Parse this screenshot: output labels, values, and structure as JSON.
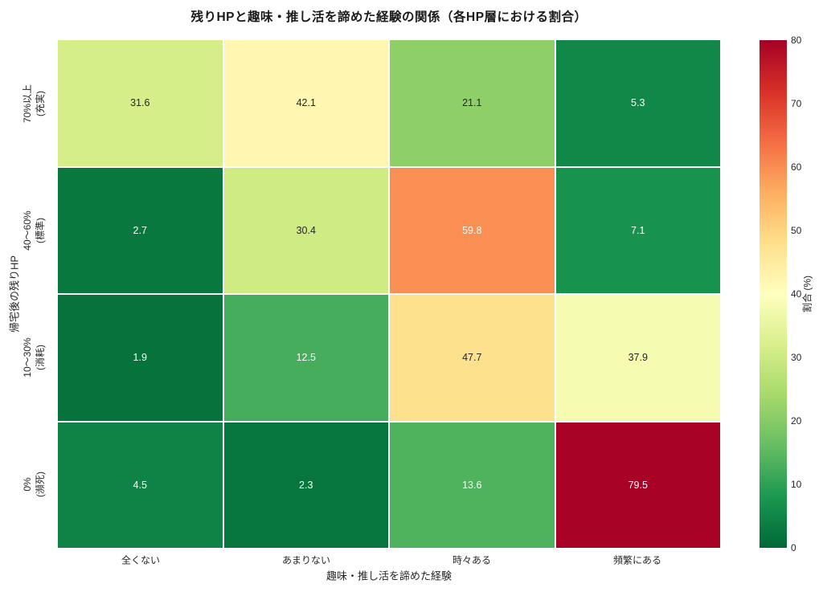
{
  "chart_data": {
    "type": "heatmap",
    "title": "残りHPと趣味・推し活を諦めた経験の関係（各HP層における割合）",
    "xlabel": "趣味・推し活を諦めた経験",
    "ylabel": "帰宅後の残りHP",
    "x_categories": [
      "全くない",
      "あまりない",
      "時々ある",
      "頻繁にある"
    ],
    "y_categories": [
      [
        "70%以上",
        "(充実)"
      ],
      [
        "40～60%",
        "(標準)"
      ],
      [
        "10～30%",
        "(消耗)"
      ],
      [
        "0%",
        "(瀕死)"
      ]
    ],
    "values": [
      [
        31.6,
        42.1,
        21.1,
        5.3
      ],
      [
        2.7,
        30.4,
        59.8,
        7.1
      ],
      [
        1.9,
        12.5,
        47.7,
        37.9
      ],
      [
        4.5,
        2.3,
        13.6,
        79.5
      ]
    ],
    "value_format_decimals": 1,
    "colorbar": {
      "label": "割合 (%)",
      "min": 0,
      "max": 80,
      "ticks": [
        0,
        10,
        20,
        30,
        40,
        50,
        60,
        70,
        80
      ]
    },
    "colormap": {
      "name": "RdYlGn_r",
      "anchors": [
        "#006837",
        "#1a9850",
        "#66bd63",
        "#a6d96a",
        "#d9ef8b",
        "#ffffbf",
        "#fee08b",
        "#fdae61",
        "#f46d43",
        "#d73027",
        "#a50026"
      ]
    },
    "annotation_text_colors": {
      "dark": "#262626",
      "light": "#ffffff"
    },
    "grid_line_color": "#ffffff",
    "legend_position": "right-colorbar"
  }
}
